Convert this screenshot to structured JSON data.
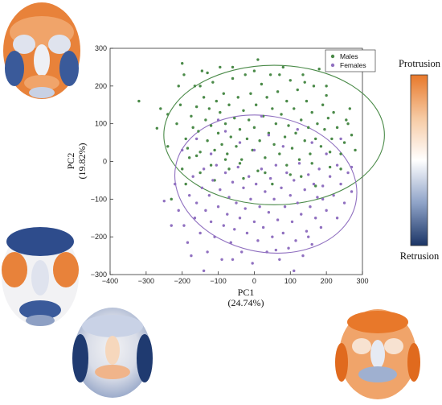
{
  "chart_data": {
    "type": "scatter",
    "title": "",
    "xlabel": "PC1",
    "xlabel_sub": "(24.74%)",
    "ylabel": "PC2",
    "ylabel_sub": "(19.82%)",
    "xlim": [
      -400,
      300
    ],
    "ylim": [
      -300,
      300
    ],
    "xticks": [
      "−400",
      "−300",
      "−200",
      "−100",
      "0",
      "100",
      "200",
      "300"
    ],
    "yticks": [
      "−300",
      "−200",
      "−100",
      "0",
      "100",
      "200",
      "300"
    ],
    "grid": false,
    "legend_position": "top-right",
    "series": [
      {
        "name": "Males",
        "color": "#4a8a48",
        "ellipse": {
          "cx": 55,
          "cy": 70,
          "rx": 306,
          "ry": 185,
          "rotation_deg": 0
        },
        "points": [
          [
            -320,
            160
          ],
          [
            -270,
            88
          ],
          [
            -240,
            125
          ],
          [
            -215,
            100
          ],
          [
            -205,
            150
          ],
          [
            -200,
            260
          ],
          [
            -195,
            230
          ],
          [
            -190,
            60
          ],
          [
            -185,
            35
          ],
          [
            -180,
            10
          ],
          [
            -175,
            120
          ],
          [
            -170,
            90
          ],
          [
            -165,
            200
          ],
          [
            -160,
            145
          ],
          [
            -155,
            80
          ],
          [
            -150,
            25
          ],
          [
            -150,
            200
          ],
          [
            -145,
            240
          ],
          [
            -140,
            170
          ],
          [
            -135,
            110
          ],
          [
            -130,
            55
          ],
          [
            -125,
            140
          ],
          [
            -120,
            95
          ],
          [
            -115,
            210
          ],
          [
            -110,
            30
          ],
          [
            -105,
            160
          ],
          [
            -100,
            75
          ],
          [
            -95,
            250
          ],
          [
            -95,
            130
          ],
          [
            -90,
            45
          ],
          [
            -85,
            180
          ],
          [
            -80,
            100
          ],
          [
            -75,
            20
          ],
          [
            -70,
            150
          ],
          [
            -65,
            65
          ],
          [
            -60,
            220
          ],
          [
            -55,
            115
          ],
          [
            -50,
            40
          ],
          [
            -45,
            170
          ],
          [
            -40,
            85
          ],
          [
            -35,
            5
          ],
          [
            -30,
            135
          ],
          [
            -25,
            230
          ],
          [
            -20,
            60
          ],
          [
            -15,
            110
          ],
          [
            -10,
            180
          ],
          [
            -5,
            30
          ],
          [
            0,
            90
          ],
          [
            5,
            150
          ],
          [
            10,
            270
          ],
          [
            15,
            55
          ],
          [
            20,
            205
          ],
          [
            25,
            120
          ],
          [
            30,
            10
          ],
          [
            35,
            170
          ],
          [
            40,
            75
          ],
          [
            45,
            230
          ],
          [
            50,
            140
          ],
          [
            55,
            45
          ],
          [
            60,
            100
          ],
          [
            65,
            185
          ],
          [
            70,
            20
          ],
          [
            75,
            125
          ],
          [
            80,
            250
          ],
          [
            85,
            65
          ],
          [
            90,
            160
          ],
          [
            95,
            95
          ],
          [
            100,
            215
          ],
          [
            105,
            35
          ],
          [
            110,
            140
          ],
          [
            115,
            75
          ],
          [
            120,
            190
          ],
          [
            125,
            5
          ],
          [
            130,
            110
          ],
          [
            135,
            230
          ],
          [
            140,
            55
          ],
          [
            145,
            160
          ],
          [
            150,
            90
          ],
          [
            155,
            20
          ],
          [
            160,
            130
          ],
          [
            165,
            200
          ],
          [
            170,
            60
          ],
          [
            175,
            100
          ],
          [
            180,
            245
          ],
          [
            185,
            40
          ],
          [
            190,
            150
          ],
          [
            195,
            85
          ],
          [
            200,
            175
          ],
          [
            205,
            115
          ],
          [
            210,
            25
          ],
          [
            215,
            60
          ],
          [
            220,
            130
          ],
          [
            230,
            90
          ],
          [
            240,
            20
          ],
          [
            250,
            50
          ],
          [
            255,
            110
          ],
          [
            265,
            140
          ],
          [
            270,
            70
          ],
          [
            -230,
            -100
          ],
          [
            -190,
            -60
          ],
          [
            -150,
            -30
          ],
          [
            -110,
            -50
          ],
          [
            -70,
            -20
          ],
          [
            -30,
            -45
          ],
          [
            10,
            -25
          ],
          [
            50,
            -60
          ],
          [
            90,
            -10
          ],
          [
            130,
            -40
          ],
          [
            170,
            -65
          ],
          [
            210,
            -15
          ],
          [
            -260,
            140
          ],
          [
            -210,
            200
          ],
          [
            -130,
            235
          ],
          [
            -60,
            250
          ],
          [
            0,
            240
          ],
          [
            70,
            230
          ],
          [
            140,
            210
          ],
          [
            200,
            200
          ],
          [
            260,
            100
          ],
          [
            280,
            30
          ],
          [
            -240,
            40
          ],
          [
            -200,
            -20
          ],
          [
            -160,
            15
          ],
          [
            -120,
            -10
          ],
          [
            -80,
            5
          ],
          [
            -40,
            -5
          ],
          [
            30,
            -30
          ],
          [
            100,
            -35
          ],
          [
            160,
            -5
          ],
          [
            240,
            -20
          ]
        ]
      },
      {
        "name": "Females",
        "color": "#9070c0",
        "ellipse": {
          "cx": 32,
          "cy": -60,
          "rx": 255,
          "ry": 180,
          "rotation_deg": 12
        },
        "points": [
          [
            -250,
            -105
          ],
          [
            -220,
            -60
          ],
          [
            -210,
            -130
          ],
          [
            -195,
            -170
          ],
          [
            -185,
            -215
          ],
          [
            -180,
            -90
          ],
          [
            -170,
            -40
          ],
          [
            -165,
            -150
          ],
          [
            -160,
            -110
          ],
          [
            -150,
            -190
          ],
          [
            -145,
            -70
          ],
          [
            -140,
            -20
          ],
          [
            -135,
            -130
          ],
          [
            -130,
            -240
          ],
          [
            -125,
            -90
          ],
          [
            -120,
            -160
          ],
          [
            -115,
            -50
          ],
          [
            -110,
            -200
          ],
          [
            -105,
            -10
          ],
          [
            -100,
            -120
          ],
          [
            -95,
            -75
          ],
          [
            -90,
            -260
          ],
          [
            -85,
            -170
          ],
          [
            -80,
            -30
          ],
          [
            -75,
            -140
          ],
          [
            -70,
            -95
          ],
          [
            -65,
            -215
          ],
          [
            -60,
            -55
          ],
          [
            -55,
            -180
          ],
          [
            -50,
            -110
          ],
          [
            -45,
            -15
          ],
          [
            -40,
            -150
          ],
          [
            -35,
            -240
          ],
          [
            -30,
            -70
          ],
          [
            -25,
            -125
          ],
          [
            -20,
            -190
          ],
          [
            -15,
            -40
          ],
          [
            -10,
            -100
          ],
          [
            -5,
            -270
          ],
          [
            0,
            -160
          ],
          [
            5,
            -60
          ],
          [
            10,
            -210
          ],
          [
            15,
            -120
          ],
          [
            20,
            -20
          ],
          [
            25,
            -175
          ],
          [
            30,
            -80
          ],
          [
            35,
            -240
          ],
          [
            40,
            -135
          ],
          [
            45,
            -45
          ],
          [
            50,
            -200
          ],
          [
            55,
            -100
          ],
          [
            60,
            -10
          ],
          [
            65,
            -155
          ],
          [
            70,
            -260
          ],
          [
            75,
            -70
          ],
          [
            80,
            -190
          ],
          [
            85,
            -120
          ],
          [
            90,
            -30
          ],
          [
            95,
            -230
          ],
          [
            100,
            -90
          ],
          [
            105,
            -160
          ],
          [
            110,
            -50
          ],
          [
            115,
            -210
          ],
          [
            120,
            -110
          ],
          [
            125,
            -5
          ],
          [
            130,
            -140
          ],
          [
            135,
            -250
          ],
          [
            140,
            -75
          ],
          [
            145,
            -185
          ],
          [
            150,
            -35
          ],
          [
            155,
            -120
          ],
          [
            160,
            -220
          ],
          [
            165,
            -60
          ],
          [
            170,
            -150
          ],
          [
            175,
            -95
          ],
          [
            180,
            -20
          ],
          [
            185,
            -175
          ],
          [
            190,
            -65
          ],
          [
            200,
            -130
          ],
          [
            210,
            -40
          ],
          [
            220,
            -90
          ],
          [
            230,
            -10
          ],
          [
            240,
            -60
          ],
          [
            250,
            -110
          ],
          [
            260,
            -30
          ],
          [
            270,
            -80
          ],
          [
            -200,
            30
          ],
          [
            -160,
            60
          ],
          [
            -120,
            20
          ],
          [
            -80,
            80
          ],
          [
            -40,
            50
          ],
          [
            0,
            30
          ],
          [
            40,
            70
          ],
          [
            80,
            40
          ],
          [
            120,
            85
          ],
          [
            160,
            50
          ],
          [
            200,
            20
          ],
          [
            240,
            60
          ],
          [
            -100,
            110
          ],
          [
            20,
            120
          ],
          [
            -140,
            -290
          ],
          [
            -60,
            -260
          ],
          [
            60,
            -235
          ],
          [
            150,
            -200
          ],
          [
            230,
            -150
          ],
          [
            -230,
            -170
          ],
          [
            -175,
            -250
          ],
          [
            110,
            -290
          ],
          [
            190,
            -100
          ],
          [
            270,
            -15
          ]
        ]
      }
    ],
    "colorbar": {
      "top_label": "Protrusion",
      "bottom_label": "Retrusion",
      "colors": [
        "#e87a2a",
        "#ffffff",
        "#1b3566"
      ]
    }
  }
}
